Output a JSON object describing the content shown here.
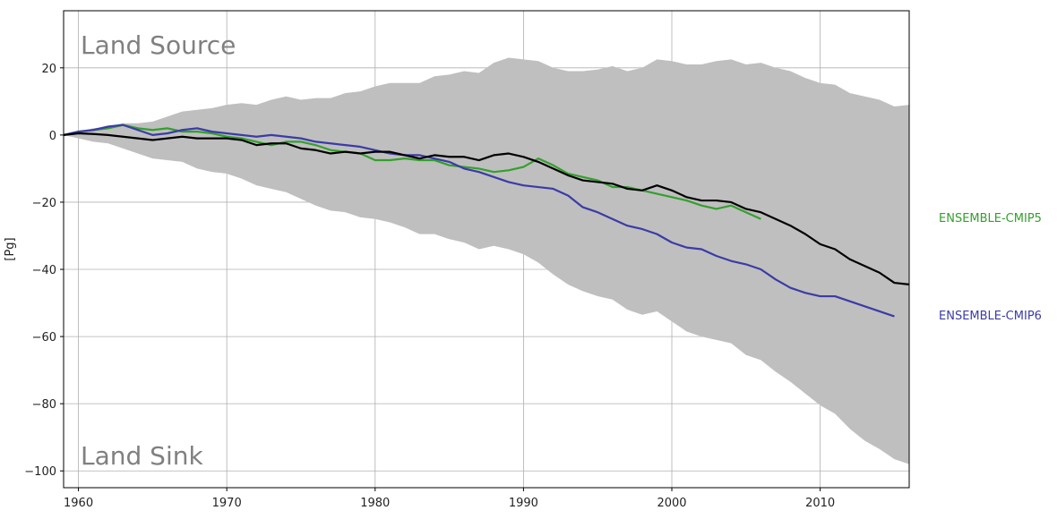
{
  "chart_data": {
    "type": "line",
    "title": "",
    "xlabel": "",
    "ylabel": "[Pg]",
    "xlim": [
      1959,
      2016
    ],
    "ylim": [
      -105,
      37
    ],
    "xticks": [
      1960,
      1970,
      1980,
      1990,
      2000,
      2010
    ],
    "yticks": [
      20,
      0,
      -20,
      -40,
      -60,
      -80,
      -100
    ],
    "xtick_labels": [
      "1960",
      "1970",
      "1980",
      "1990",
      "2000",
      "2010"
    ],
    "ytick_labels": [
      "20",
      "0",
      "−20",
      "−40",
      "−60",
      "−80",
      "−100"
    ],
    "grid": true,
    "annotations": {
      "top": "Land Source",
      "bottom": "Land Sink"
    },
    "band": {
      "color": "#bfbfbf",
      "x": [
        1959,
        1960,
        1961,
        1962,
        1963,
        1964,
        1965,
        1966,
        1967,
        1968,
        1969,
        1970,
        1971,
        1972,
        1973,
        1974,
        1975,
        1976,
        1977,
        1978,
        1979,
        1980,
        1981,
        1982,
        1983,
        1984,
        1985,
        1986,
        1987,
        1988,
        1989,
        1990,
        1991,
        1992,
        1993,
        1994,
        1995,
        1996,
        1997,
        1998,
        1999,
        2000,
        2001,
        2002,
        2003,
        2004,
        2005,
        2006,
        2007,
        2008,
        2009,
        2010,
        2011,
        2012,
        2013,
        2014,
        2015,
        2016
      ],
      "upper": [
        0,
        1,
        2,
        2.5,
        3.5,
        3.5,
        4,
        5.5,
        7,
        7.5,
        8,
        9,
        9.5,
        9,
        10.5,
        11.5,
        10.5,
        11,
        11,
        12.5,
        13,
        14.5,
        15.5,
        15.5,
        15.5,
        17.5,
        18,
        19,
        18.5,
        21.5,
        23,
        22.5,
        22,
        20,
        19,
        19,
        19.5,
        20.5,
        19,
        20,
        22.5,
        22,
        21,
        21,
        22,
        22.5,
        21,
        21.5,
        20,
        19,
        17,
        15.5,
        15,
        12.5,
        11.5,
        10.5,
        8.5,
        9
      ],
      "lower": [
        0,
        -1,
        -2,
        -2.5,
        -4,
        -5.5,
        -7,
        -7.5,
        -8,
        -10,
        -11,
        -11.5,
        -13,
        -15,
        -16,
        -17,
        -19,
        -21,
        -22.5,
        -23,
        -24.5,
        -25,
        -26,
        -27.5,
        -29.5,
        -29.5,
        -31,
        -32,
        -34,
        -33,
        -34,
        -35.5,
        -38,
        -41.5,
        -44.5,
        -46.5,
        -48,
        -49,
        -52,
        -53.5,
        -52.5,
        -55.5,
        -58.5,
        -60,
        -61,
        -62,
        -65.5,
        -67,
        -70.5,
        -73.5,
        -77,
        -80.5,
        -83,
        -87.5,
        -91,
        -93.5,
        -96.5,
        -98
      ]
    },
    "series": [
      {
        "name": "",
        "color": "#000000",
        "x": [
          1959,
          1960,
          1961,
          1962,
          1963,
          1964,
          1965,
          1966,
          1967,
          1968,
          1969,
          1970,
          1971,
          1972,
          1973,
          1974,
          1975,
          1976,
          1977,
          1978,
          1979,
          1980,
          1981,
          1982,
          1983,
          1984,
          1985,
          1986,
          1987,
          1988,
          1989,
          1990,
          1991,
          1992,
          1993,
          1994,
          1995,
          1996,
          1997,
          1998,
          1999,
          2000,
          2001,
          2002,
          2003,
          2004,
          2005,
          2006,
          2007,
          2008,
          2009,
          2010,
          2011,
          2012,
          2013,
          2014,
          2015,
          2016
        ],
        "y": [
          0,
          0.5,
          0.3,
          0,
          -0.5,
          -1,
          -1.5,
          -1,
          -0.5,
          -1,
          -1,
          -1,
          -1.5,
          -3,
          -2.5,
          -2.5,
          -4,
          -4.5,
          -5.5,
          -5,
          -5.5,
          -5,
          -5,
          -6,
          -7,
          -6,
          -6.5,
          -6.5,
          -7.5,
          -6,
          -5.5,
          -6.5,
          -8,
          -10,
          -12,
          -13.5,
          -14,
          -14.5,
          -16,
          -16.5,
          -15,
          -16.5,
          -18.5,
          -19.5,
          -19.5,
          -20,
          -22,
          -23,
          -25,
          -27,
          -29.5,
          -32.5,
          -34,
          -37,
          -39,
          -41,
          -44,
          -44.5
        ]
      },
      {
        "name": "ENSEMBLE-CMIP5",
        "color": "#33a02c",
        "x": [
          1959,
          1960,
          1961,
          1962,
          1963,
          1964,
          1965,
          1966,
          1967,
          1968,
          1969,
          1970,
          1971,
          1972,
          1973,
          1974,
          1975,
          1976,
          1977,
          1978,
          1979,
          1980,
          1981,
          1982,
          1983,
          1984,
          1985,
          1986,
          1987,
          1988,
          1989,
          1990,
          1991,
          1992,
          1993,
          1994,
          1995,
          1996,
          1997,
          1998,
          1999,
          2000,
          2001,
          2002,
          2003,
          2004,
          2005,
          2006
        ],
        "y": [
          0,
          1,
          1.5,
          2,
          3,
          2,
          1.5,
          2,
          1,
          1,
          0.5,
          -0.5,
          -1,
          -2,
          -3,
          -2,
          -2,
          -3,
          -4.5,
          -5,
          -5.5,
          -7.5,
          -7.5,
          -7,
          -7.5,
          -7.5,
          -9,
          -9.5,
          -10,
          -11,
          -10.5,
          -9.5,
          -7,
          -9,
          -11.5,
          -12.5,
          -13.5,
          -15.5,
          -15.5,
          -16.5,
          -17.5,
          -18.5,
          -19.5,
          -21,
          -22,
          -21,
          -23,
          -25
        ]
      },
      {
        "name": "ENSEMBLE-CMIP6",
        "color": "#3b3ba8",
        "x": [
          1959,
          1960,
          1961,
          1962,
          1963,
          1964,
          1965,
          1966,
          1967,
          1968,
          1969,
          1970,
          1971,
          1972,
          1973,
          1974,
          1975,
          1976,
          1977,
          1978,
          1979,
          1980,
          1981,
          1982,
          1983,
          1984,
          1985,
          1986,
          1987,
          1988,
          1989,
          1990,
          1991,
          1992,
          1993,
          1994,
          1995,
          1996,
          1997,
          1998,
          1999,
          2000,
          2001,
          2002,
          2003,
          2004,
          2005,
          2006,
          2007,
          2008,
          2009,
          2010,
          2011,
          2012,
          2013,
          2014,
          2015
        ],
        "y": [
          0,
          1,
          1.5,
          2.5,
          3,
          1.5,
          0,
          0.5,
          1.5,
          2,
          1,
          0.5,
          0,
          -0.5,
          0,
          -0.5,
          -1,
          -2,
          -2.5,
          -3,
          -3.5,
          -4.5,
          -5.5,
          -6,
          -6,
          -7,
          -8,
          -10,
          -11,
          -12.5,
          -14,
          -15,
          -15.5,
          -16,
          -18,
          -21.5,
          -23,
          -25,
          -27,
          -28,
          -29.5,
          -32,
          -33.5,
          -34,
          -36,
          -37.5,
          -38.5,
          -40,
          -43,
          -45.5,
          -47,
          -48,
          -48,
          -49.5,
          -51,
          -52.5,
          -54
        ]
      }
    ],
    "legend": {
      "placement": "right-outside",
      "entries": [
        {
          "label": "ENSEMBLE-CMIP5",
          "color": "#33a02c"
        },
        {
          "label": "ENSEMBLE-CMIP6",
          "color": "#3b3ba8"
        }
      ]
    }
  }
}
